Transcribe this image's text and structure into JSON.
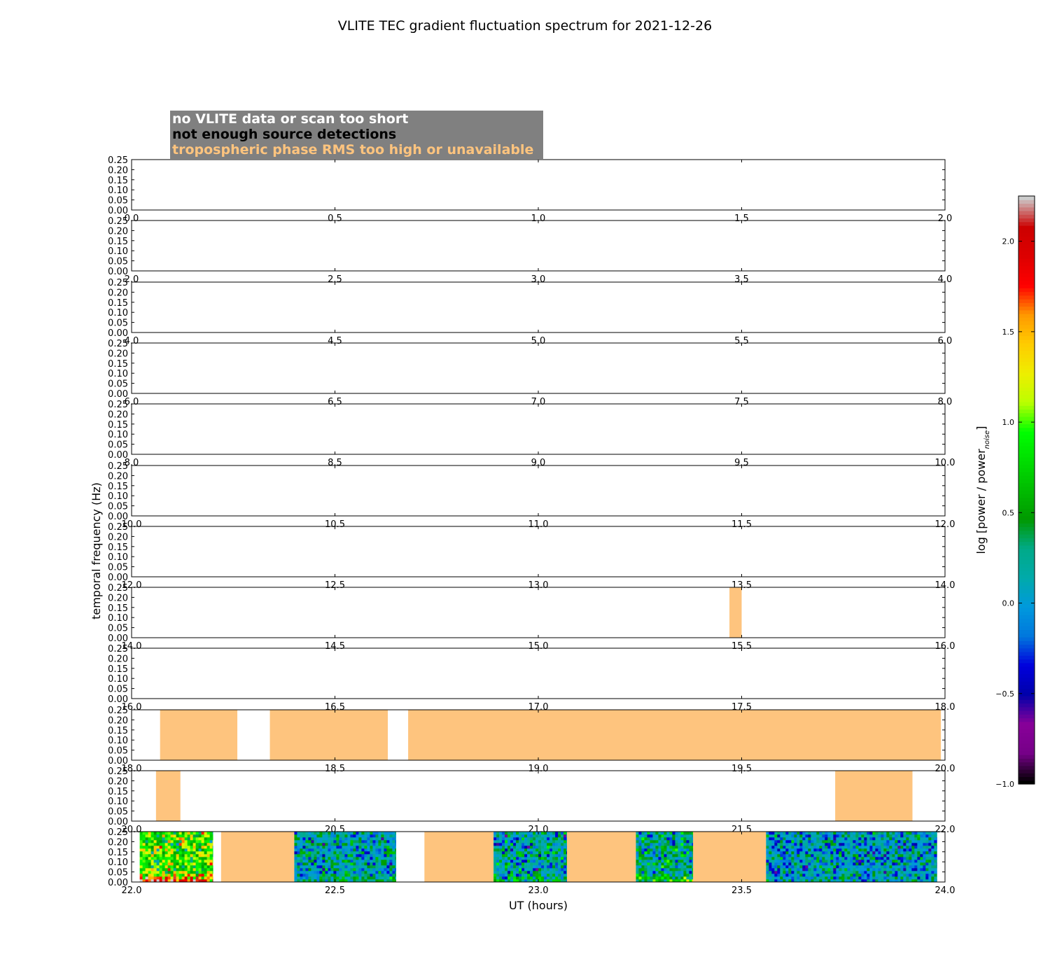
{
  "chart_data": {
    "type": "heatmap",
    "title": "VLITE TEC gradient fluctuation spectrum for 2021-12-26",
    "xlabel": "UT (hours)",
    "ylabel": "temporal frequency (Hz)",
    "colorbar_label": "log [power / power",
    "colorbar_label_sub": "noise",
    "colorbar_label_end": "]",
    "colorbar_range": [
      -1.0,
      2.25
    ],
    "colorbar_ticks": [
      -1.0,
      -0.5,
      0.0,
      0.5,
      1.0,
      1.5,
      2.0
    ],
    "colormap": "nipy_spectral",
    "ylim": [
      0,
      0.25
    ],
    "yticks": [
      0.0,
      0.05,
      0.1,
      0.15,
      0.2,
      0.25
    ],
    "legend": {
      "placement": "top-left",
      "items": [
        {
          "label": "no VLITE data or scan too short",
          "color": "#ffffff"
        },
        {
          "label": "not enough source detections",
          "color": "#000000"
        },
        {
          "label": "tropospheric phase RMS too high or unavailable",
          "color": "#fec47e"
        }
      ]
    },
    "panels": [
      {
        "xrange": [
          0,
          2
        ],
        "xticks": [
          0.0,
          0.5,
          1.0,
          1.5,
          2.0
        ],
        "flagged": [],
        "data": []
      },
      {
        "xrange": [
          2,
          4
        ],
        "xticks": [
          2.0,
          2.5,
          3.0,
          3.5,
          4.0
        ],
        "flagged": [],
        "data": []
      },
      {
        "xrange": [
          4,
          6
        ],
        "xticks": [
          4.0,
          4.5,
          5.0,
          5.5,
          6.0
        ],
        "flagged": [],
        "data": []
      },
      {
        "xrange": [
          6,
          8
        ],
        "xticks": [
          6.0,
          6.5,
          7.0,
          7.5,
          8.0
        ],
        "flagged": [],
        "data": []
      },
      {
        "xrange": [
          8,
          10
        ],
        "xticks": [
          8.0,
          8.5,
          9.0,
          9.5,
          10.0
        ],
        "flagged": [],
        "data": []
      },
      {
        "xrange": [
          10,
          12
        ],
        "xticks": [
          10.0,
          10.5,
          11.0,
          11.5,
          12.0
        ],
        "flagged": [],
        "data": []
      },
      {
        "xrange": [
          12,
          14
        ],
        "xticks": [
          12.0,
          12.5,
          13.0,
          13.5,
          14.0
        ],
        "flagged": [],
        "data": []
      },
      {
        "xrange": [
          14,
          16
        ],
        "xticks": [
          14.0,
          14.5,
          15.0,
          15.5,
          16.0
        ],
        "flagged": [
          [
            15.47,
            15.5
          ]
        ],
        "data": []
      },
      {
        "xrange": [
          16,
          18
        ],
        "xticks": [
          16.0,
          16.5,
          17.0,
          17.5,
          18.0
        ],
        "flagged": [],
        "data": []
      },
      {
        "xrange": [
          18,
          20
        ],
        "xticks": [
          18.0,
          18.5,
          19.0,
          19.5,
          20.0
        ],
        "flagged": [
          [
            18.07,
            18.26
          ],
          [
            18.34,
            18.63
          ],
          [
            18.68,
            19.99
          ]
        ],
        "data": []
      },
      {
        "xrange": [
          20,
          22
        ],
        "xticks": [
          20.0,
          20.5,
          21.0,
          21.5,
          22.0
        ],
        "flagged": [
          [
            20.06,
            20.12
          ],
          [
            21.73,
            21.92
          ]
        ],
        "data": []
      },
      {
        "xrange": [
          22,
          24
        ],
        "xticks": [
          22.0,
          22.5,
          23.0,
          23.5,
          24.0
        ],
        "flagged": [
          [
            22.22,
            22.4
          ],
          [
            22.72,
            22.89
          ],
          [
            23.07,
            23.24
          ],
          [
            23.38,
            23.56
          ]
        ],
        "data": [
          {
            "x": [
              22.02,
              22.2
            ],
            "mean": 0.9,
            "spread": 0.5,
            "low_boost": 1.0
          },
          {
            "x": [
              22.4,
              22.65
            ],
            "mean": 0.1,
            "spread": 0.4,
            "low_boost": 0.2
          },
          {
            "x": [
              22.89,
              23.07
            ],
            "mean": 0.15,
            "spread": 0.45,
            "low_boost": 0.3
          },
          {
            "x": [
              23.24,
              23.38
            ],
            "mean": 0.25,
            "spread": 0.45,
            "low_boost": 0.4
          },
          {
            "x": [
              23.56,
              23.98
            ],
            "mean": 0.05,
            "spread": 0.4,
            "low_boost": 0.1
          }
        ]
      }
    ]
  }
}
